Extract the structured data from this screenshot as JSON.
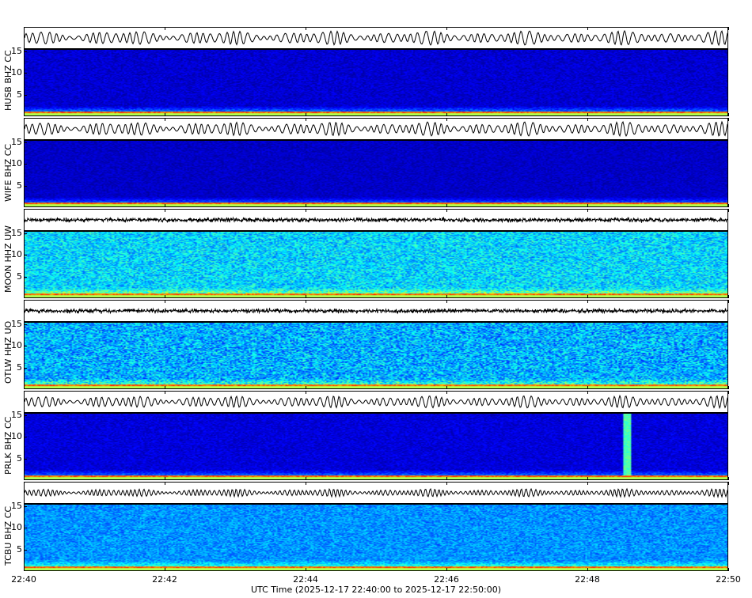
{
  "chart_data": {
    "type": "heatmap",
    "xlabel": "UTC Time (2025-12-17 22:40:00 to 2025-12-17 22:50:00)",
    "x_ticks": [
      "22:40",
      "22:42",
      "22:44",
      "22:46",
      "22:48",
      "22:50"
    ],
    "xlim": [
      "22:40:00",
      "22:50:00"
    ],
    "ylim": [
      0,
      15.5
    ],
    "y_ticks": [
      "5",
      "10",
      "15"
    ],
    "colormap": "jet",
    "panels": [
      {
        "label": "HUSB BHZ CC"
      },
      {
        "label": "WIFE BHZ CC"
      },
      {
        "label": "MOON HHZ UW"
      },
      {
        "label": "OTLW HHZ UO"
      },
      {
        "label": "PRLK BHZ CC"
      },
      {
        "label": "TCBU BHZ CC"
      }
    ]
  }
}
